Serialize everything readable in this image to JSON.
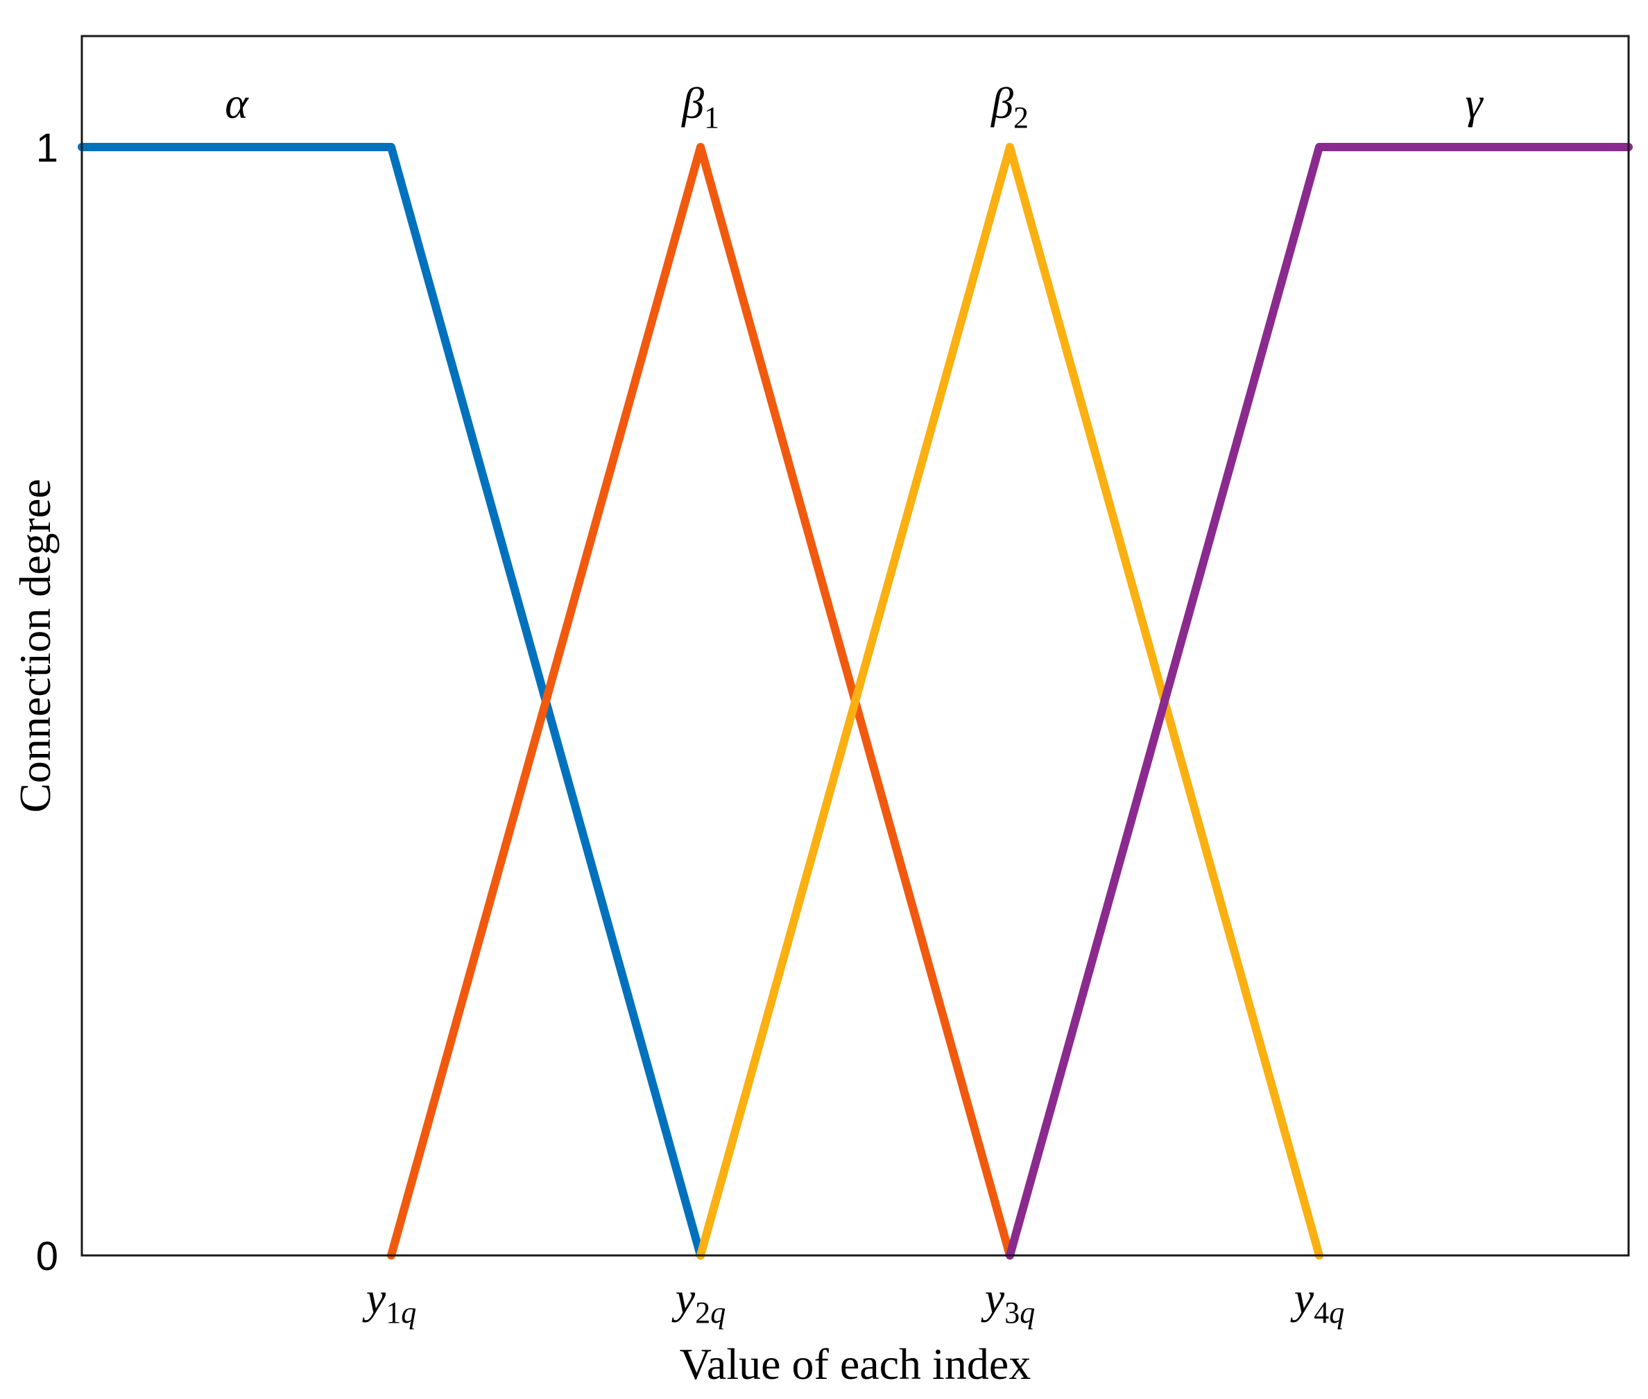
{
  "chart_data": {
    "type": "line",
    "xlabel": "Value of each index",
    "ylabel": "Connection degree",
    "x_ticks": [
      {
        "x": 1,
        "base": "y",
        "sub": "1q"
      },
      {
        "x": 2,
        "base": "y",
        "sub": "2q"
      },
      {
        "x": 3,
        "base": "y",
        "sub": "3q"
      },
      {
        "x": 4,
        "base": "y",
        "sub": "4q"
      }
    ],
    "y_ticks": [
      {
        "y": 0,
        "label": "0"
      },
      {
        "y": 1,
        "label": "1"
      }
    ],
    "xlim": [
      0,
      5
    ],
    "ylim": [
      0,
      1.1
    ],
    "grid": false,
    "series": [
      {
        "base": "α",
        "sub": "",
        "color": "#0072BD",
        "x": [
          0,
          1,
          2
        ],
        "y": [
          1,
          1,
          0
        ],
        "label_x": 0.5
      },
      {
        "base": "β",
        "sub": "1",
        "color": "#F15A0E",
        "x": [
          1,
          2,
          3
        ],
        "y": [
          0,
          1,
          0
        ],
        "label_x": 2
      },
      {
        "base": "β",
        "sub": "2",
        "color": "#FBB011",
        "x": [
          2,
          3,
          4
        ],
        "y": [
          0,
          1,
          0
        ],
        "label_x": 3
      },
      {
        "base": "γ",
        "sub": "",
        "color": "#8B2A8E",
        "x": [
          3,
          4,
          5
        ],
        "y": [
          0,
          1,
          1
        ],
        "label_x": 4.5
      }
    ]
  }
}
